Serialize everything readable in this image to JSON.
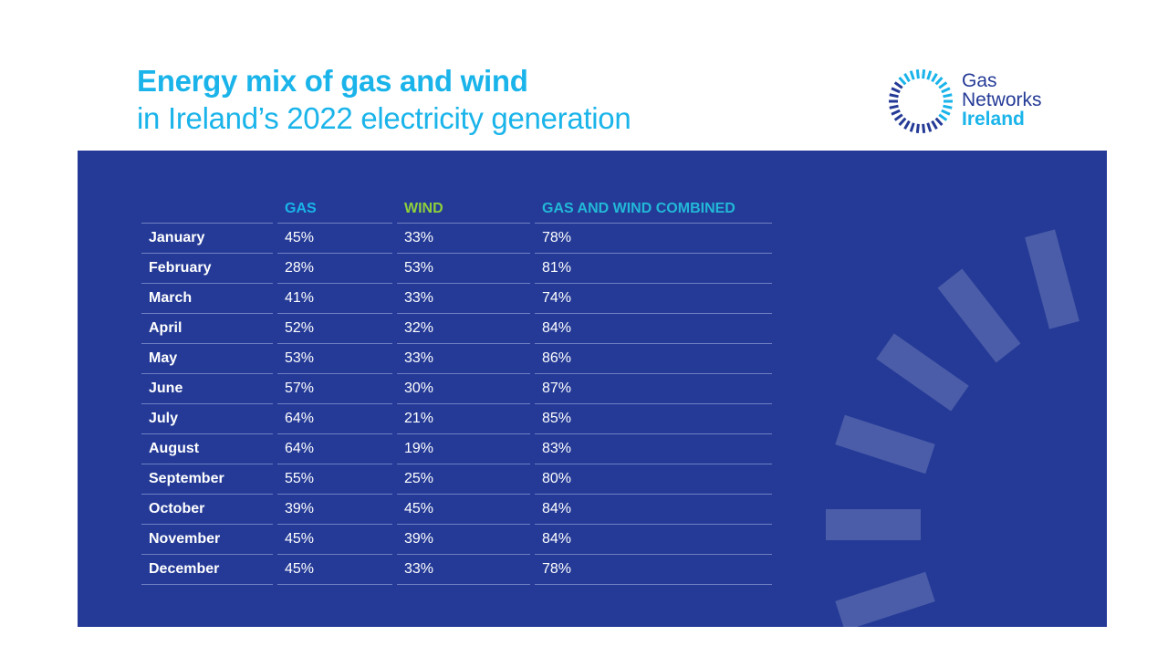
{
  "header": {
    "title_bold": "Energy mix of gas and wind",
    "title_light": "in Ireland’s 2022 electricity generation"
  },
  "logo": {
    "line1": "Gas",
    "line2": "Networks",
    "line3": "Ireland",
    "icon": "dashed-ring-logo-icon"
  },
  "colors": {
    "title": "#1ab4ea",
    "panel": "#243a96",
    "gas": "#1ab4ea",
    "wind": "#8ed03a",
    "combined": "#22b8d8"
  },
  "table": {
    "headers": [
      "",
      "GAS",
      "WIND",
      "GAS AND WIND COMBINED"
    ],
    "rows": [
      {
        "month": "January",
        "gas": "45%",
        "wind": "33%",
        "combined": "78%"
      },
      {
        "month": "February",
        "gas": "28%",
        "wind": "53%",
        "combined": "81%"
      },
      {
        "month": "March",
        "gas": "41%",
        "wind": "33%",
        "combined": "74%"
      },
      {
        "month": "April",
        "gas": "52%",
        "wind": "32%",
        "combined": "84%"
      },
      {
        "month": "May",
        "gas": "53%",
        "wind": "33%",
        "combined": "86%"
      },
      {
        "month": "June",
        "gas": "57%",
        "wind": "30%",
        "combined": "87%"
      },
      {
        "month": "July",
        "gas": "64%",
        "wind": "21%",
        "combined": "85%"
      },
      {
        "month": "August",
        "gas": "64%",
        "wind": "19%",
        "combined": "83%"
      },
      {
        "month": "September",
        "gas": "55%",
        "wind": "25%",
        "combined": "80%"
      },
      {
        "month": "October",
        "gas": "39%",
        "wind": "45%",
        "combined": "84%"
      },
      {
        "month": "November",
        "gas": "45%",
        "wind": "39%",
        "combined": "84%"
      },
      {
        "month": "December",
        "gas": "45%",
        "wind": "33%",
        "combined": "78%"
      }
    ]
  }
}
